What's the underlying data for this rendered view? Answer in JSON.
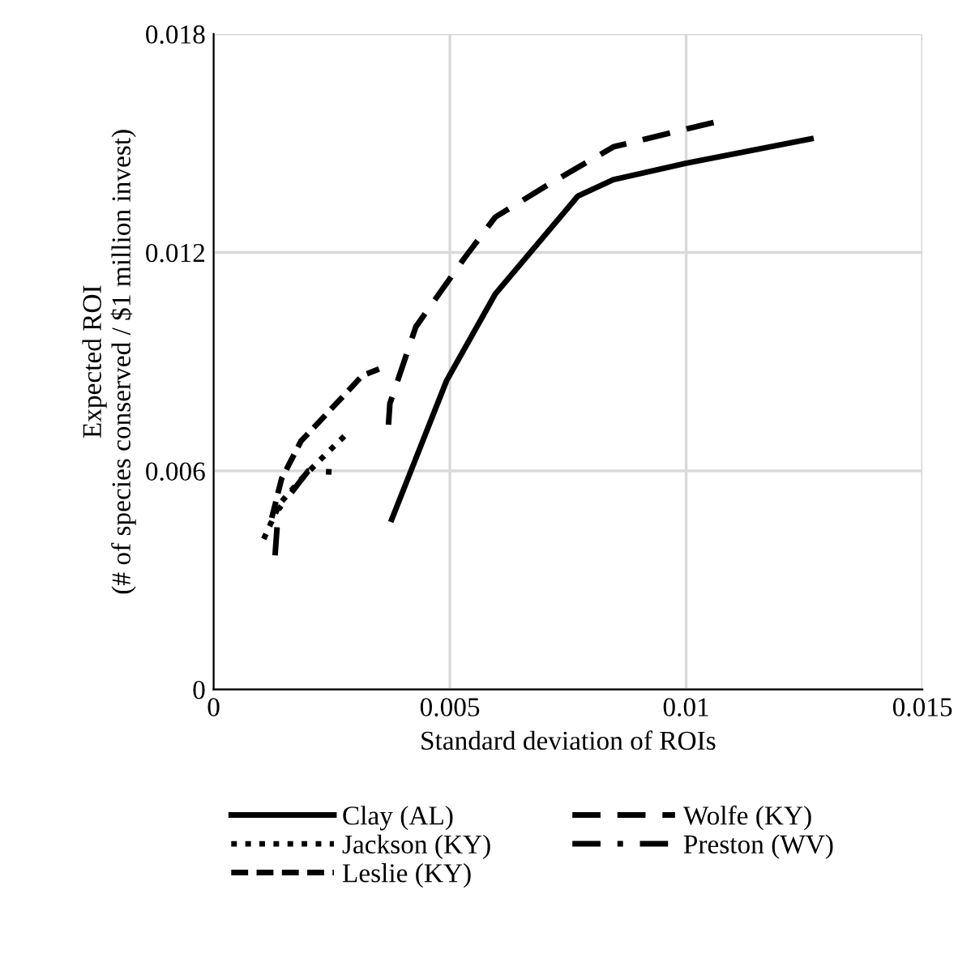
{
  "chart_data": {
    "type": "line",
    "xlabel": "Standard deviation of ROIs",
    "ylabel": "Expected ROI\n(# of species conserved / $1 million invest)",
    "xlim": [
      0,
      0.015
    ],
    "xticks": [
      0,
      0.005,
      0.01,
      0.015
    ],
    "ylim": [
      0,
      0.018
    ],
    "yticks": [
      0,
      0.006,
      0.012,
      0.018
    ],
    "grid": true,
    "legend": "bottom",
    "marker": "none",
    "series": [
      {
        "name": "Clay (AL)",
        "color": "#000000",
        "line_style": "solid",
        "x": [
          0.00377,
          0.00493,
          0.00596,
          0.00771,
          0.00846,
          0.01,
          0.01264
        ],
        "values": [
          0.00467,
          0.00848,
          0.01086,
          0.01355,
          0.014,
          0.01445,
          0.01512
        ]
      },
      {
        "name": "Jackson (KY)",
        "color": "#000000",
        "line_style": "dotted",
        "x": [
          0.00106,
          0.0014,
          0.0018,
          0.00225,
          0.00277
        ],
        "values": [
          0.00413,
          0.0051,
          0.0057,
          0.0063,
          0.00696
        ]
      },
      {
        "name": "Leslie (KY)",
        "color": "#000000",
        "line_style": "dashed",
        "x": [
          0.00123,
          0.00144,
          0.00185,
          0.0024,
          0.00315,
          0.0035
        ],
        "values": [
          0.00471,
          0.00579,
          0.00682,
          0.00758,
          0.00862,
          0.0088
        ]
      },
      {
        "name": "Wolfe (KY)",
        "color": "#000000",
        "line_style": "longdash",
        "x": [
          0.0037,
          0.00373,
          0.00428,
          0.00531,
          0.00596,
          0.00709,
          0.00846,
          0.01058
        ],
        "values": [
          0.00727,
          0.00785,
          0.00996,
          0.01185,
          0.01297,
          0.01387,
          0.0149,
          0.01557
        ]
      },
      {
        "name": "Preston (WV)",
        "color": "#000000",
        "line_style": "dashdot",
        "x": [
          0.0013,
          0.00137,
          0.002,
          0.00253
        ],
        "values": [
          0.00368,
          0.00494,
          0.006,
          0.00597
        ]
      }
    ]
  }
}
